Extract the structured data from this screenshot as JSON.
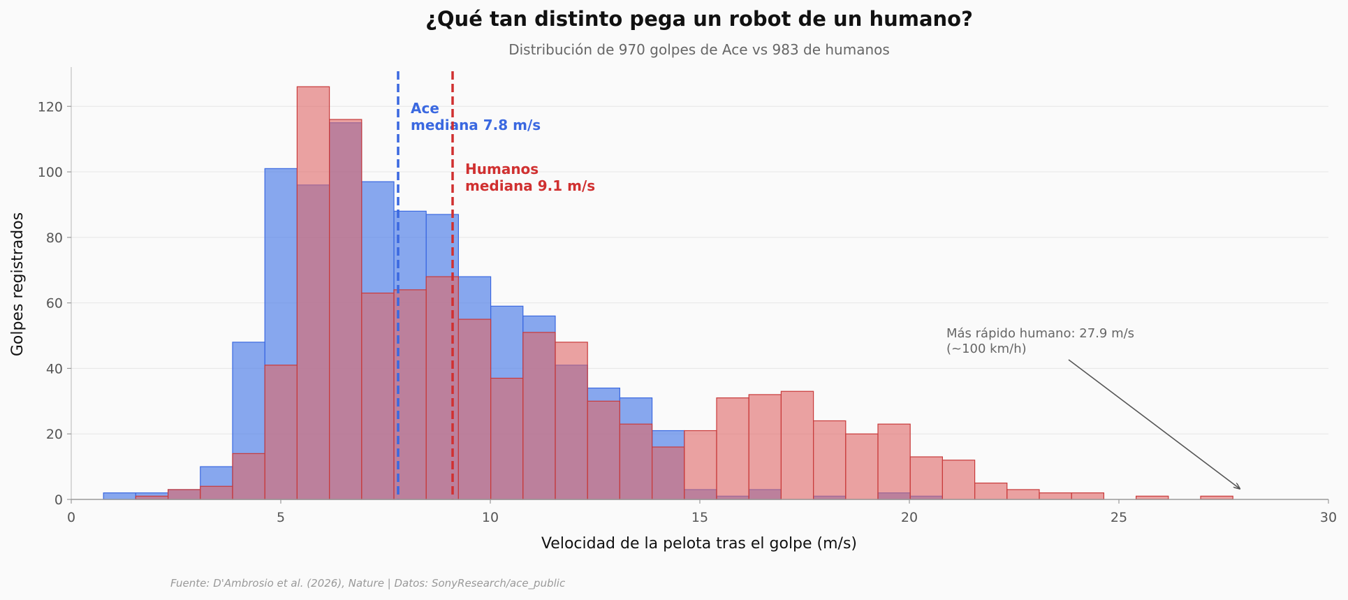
{
  "chart_data": {
    "type": "histogram",
    "title": "¿Qué tan distinto pega un robot de un humano?",
    "subtitle": "Distribución de 970 golpes de Ace vs 983 de humanos",
    "xlabel": "Velocidad de la pelota tras el golpe (m/s)",
    "ylabel": "Golpes registrados",
    "xlim": [
      0,
      30
    ],
    "ylim": [
      0,
      132
    ],
    "x_ticks": [
      "0",
      "5",
      "10",
      "15",
      "20",
      "25",
      "30"
    ],
    "y_ticks": [
      "0",
      "20",
      "40",
      "60",
      "80",
      "100",
      "120"
    ],
    "bin_start": 0.77,
    "bin_width": 0.77,
    "series": [
      {
        "name": "Ace",
        "color": "#4f7fe8",
        "values": [
          2,
          2,
          3,
          10,
          48,
          101,
          96,
          115,
          97,
          88,
          87,
          68,
          59,
          56,
          41,
          34,
          31,
          21,
          3,
          1,
          3,
          0,
          1,
          0,
          2,
          1,
          0,
          0,
          0,
          0,
          0,
          0,
          0,
          0,
          0
        ]
      },
      {
        "name": "Humanos",
        "color": "#e06666",
        "values": [
          0,
          1,
          3,
          4,
          14,
          41,
          126,
          116,
          63,
          64,
          68,
          55,
          37,
          51,
          48,
          30,
          23,
          16,
          21,
          31,
          32,
          33,
          24,
          20,
          23,
          13,
          12,
          5,
          3,
          2,
          2,
          0,
          1,
          0,
          1
        ]
      }
    ],
    "medians": [
      {
        "name": "Ace",
        "value": 7.8,
        "color": "#3a68e0",
        "label_line1": "Ace",
        "label_line2": "mediana 7.8 m/s"
      },
      {
        "name": "Humanos",
        "value": 9.1,
        "color": "#d03030",
        "label_line1": "Humanos",
        "label_line2": "mediana 9.1 m/s"
      }
    ],
    "annotation": {
      "line1": "Más rápido humano: 27.9 m/s",
      "line2": "(~100 km/h)",
      "target_x": 27.9,
      "target_y": 2
    },
    "source": "Fuente: D'Ambrosio et al. (2026), Nature | Datos: SonyResearch/ace_public"
  }
}
